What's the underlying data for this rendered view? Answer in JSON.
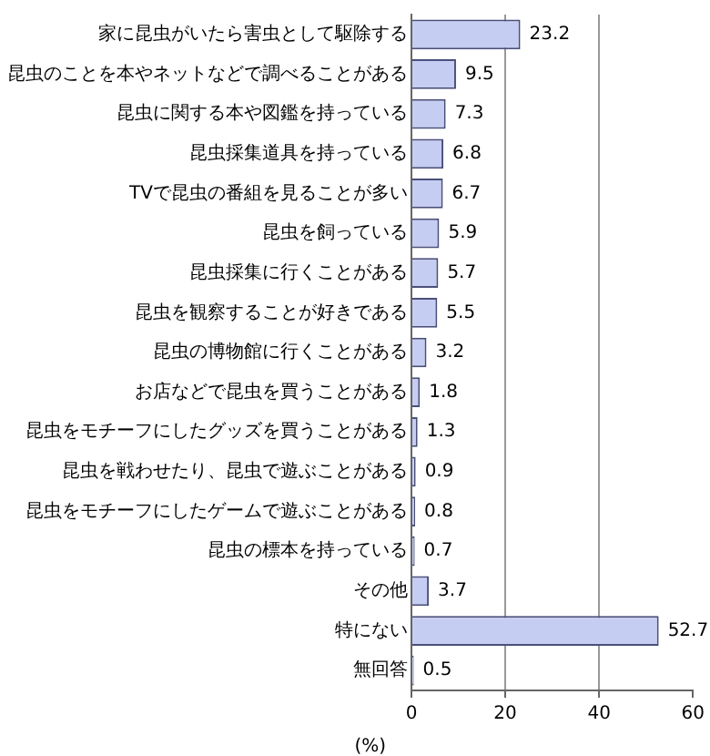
{
  "chart_data": {
    "type": "bar",
    "orientation": "horizontal",
    "xlabel": "(%)",
    "categories": [
      "家に昆虫がいたら害虫として駆除する",
      "昆虫のことを本やネットなどで調べることがある",
      "昆虫に関する本や図鑑を持っている",
      "昆虫採集道具を持っている",
      "TVで昆虫の番組を見ることが多い",
      "昆虫を飼っている",
      "昆虫採集に行くことがある",
      "昆虫を観察することが好きである",
      "昆虫の博物館に行くことがある",
      "お店などで昆虫を買うことがある",
      "昆虫をモチーフにしたグッズを買うことがある",
      "昆虫を戦わせたり、昆虫で遊ぶことがある",
      "昆虫をモチーフにしたゲームで遊ぶことがある",
      "昆虫の標本を持っている",
      "その他",
      "特にない",
      "無回答"
    ],
    "values": [
      23.2,
      9.5,
      7.3,
      6.8,
      6.7,
      5.9,
      5.7,
      5.5,
      3.2,
      1.8,
      1.3,
      0.9,
      0.8,
      0.7,
      3.7,
      52.7,
      0.5
    ],
    "color": "#c5cdf2",
    "xlim": [
      0,
      60
    ],
    "xticks": [
      0,
      20,
      40,
      60
    ],
    "grid": "x",
    "data_labels": true,
    "legend": false
  }
}
